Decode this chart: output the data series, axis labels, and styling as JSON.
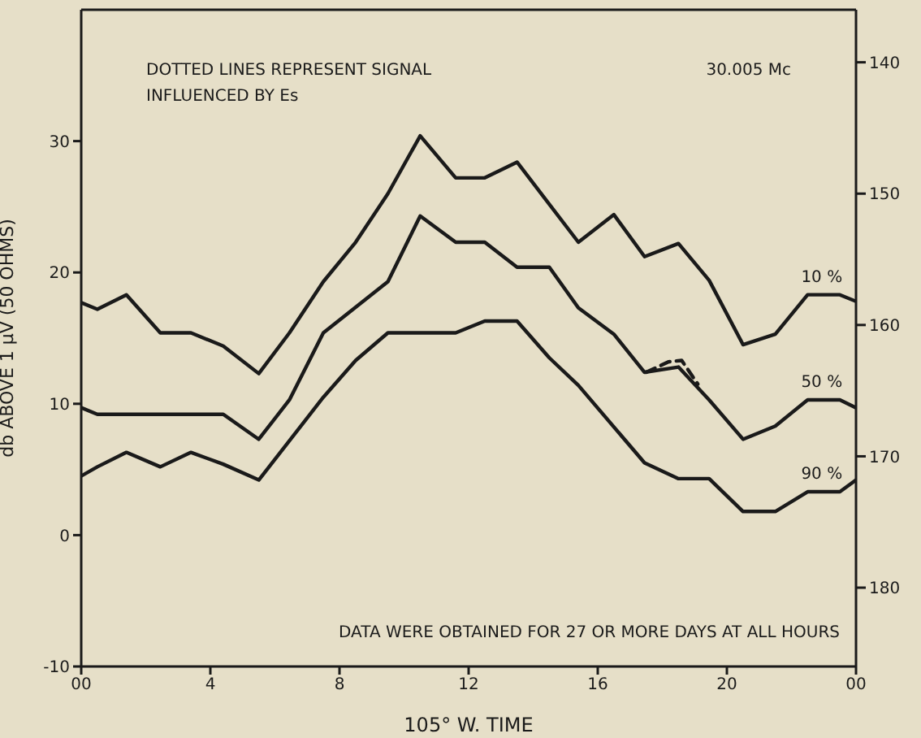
{
  "chart_data": {
    "type": "line",
    "xlabel": "105° W. TIME",
    "ylabel": "db  ABOVE 1 µV (50 OHMS)",
    "annotations": [
      "DOTTED LINES REPRESENT SIGNAL\nINFLUENCED BY Es",
      "30.005 Mc",
      "DATA WERE OBTAINED FOR 27 OR MORE DAYS AT ALL HOURS"
    ],
    "xlim": [
      0,
      24
    ],
    "xticks": [
      {
        "value": 0,
        "label": "00"
      },
      4,
      8,
      12,
      16,
      20,
      {
        "value": 24,
        "label": "00"
      }
    ],
    "ylim": [
      -10,
      40
    ],
    "yticks": [
      -10,
      0,
      10,
      20,
      30
    ],
    "y2lim": [
      186,
      136
    ],
    "y2ticks": [
      140,
      150,
      160,
      170,
      180
    ],
    "marker": "none",
    "series": [
      {
        "name": "10 %",
        "color": "#1a1a1a",
        "x": [
          0,
          0.5,
          1.4,
          2.45,
          3.4,
          4.4,
          5.5,
          6.45,
          7.5,
          8.5,
          9.5,
          10.5,
          11.6,
          12.5,
          13.5,
          15.4,
          16.5,
          17.45,
          18.5,
          19.45,
          20.5,
          21.5,
          22.5,
          23.5,
          24
        ],
        "values": [
          17.7,
          17.2,
          18.3,
          15.4,
          15.4,
          14.4,
          12.3,
          15.4,
          19.3,
          22.3,
          26,
          30.4,
          27.2,
          27.2,
          28.4,
          22.3,
          24.4,
          21.2,
          22.2,
          19.4,
          14.5,
          15.3,
          18.3,
          18.3,
          17.8
        ]
      },
      {
        "name": "50 %",
        "color": "#1a1a1a",
        "x": [
          0,
          0.5,
          4.4,
          5.5,
          6.45,
          7.5,
          9.5,
          10.5,
          11.6,
          12.5,
          13.5,
          14.5,
          15.4,
          16.5,
          17.45,
          18.5,
          19.45,
          20.5,
          21.5,
          22.5,
          23.5,
          24
        ],
        "values": [
          9.7,
          9.2,
          9.2,
          7.3,
          10.3,
          15.4,
          19.3,
          24.3,
          22.3,
          22.3,
          20.4,
          20.4,
          17.3,
          15.3,
          12.4,
          12.8,
          10.3,
          7.3,
          8.3,
          10.3,
          10.3,
          9.7
        ]
      },
      {
        "color": "#1a1a1a",
        "line_style": "dashed",
        "x": [
          17.5,
          18.2,
          18.6,
          19.1
        ],
        "values": [
          12.4,
          13.2,
          13.3,
          11.5
        ]
      },
      {
        "name": "90 %",
        "color": "#1a1a1a",
        "x": [
          0,
          0.5,
          1.4,
          2.45,
          3.4,
          4.4,
          5.5,
          7.5,
          8.5,
          9.5,
          11.6,
          12.5,
          13.5,
          14.5,
          15.4,
          17.45,
          18.5,
          19.45,
          20.5,
          21.5,
          22.5,
          23.5,
          24
        ],
        "values": [
          4.5,
          5.2,
          6.3,
          5.2,
          6.3,
          5.4,
          4.2,
          10.5,
          13.3,
          15.4,
          15.4,
          16.3,
          16.3,
          13.5,
          11.4,
          5.5,
          4.3,
          4.3,
          1.8,
          1.8,
          3.3,
          3.3,
          4.2
        ]
      }
    ]
  }
}
